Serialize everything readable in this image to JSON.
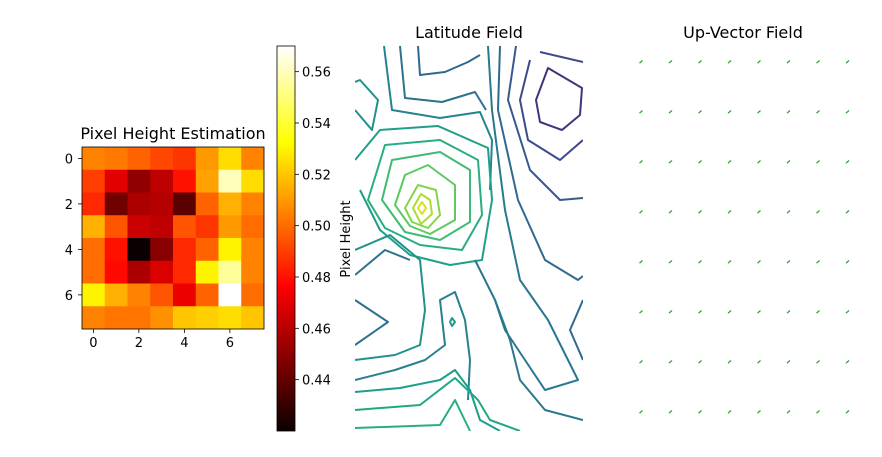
{
  "chart_data": [
    {
      "type": "heatmap",
      "title": "Pixel Height Estimation",
      "xlabel": "",
      "ylabel": "",
      "colormap": "hot",
      "xticks": [
        0,
        2,
        4,
        6
      ],
      "yticks": [
        0,
        2,
        4,
        6
      ],
      "values": [
        [
          0.505,
          0.503,
          0.498,
          0.492,
          0.488,
          0.51,
          0.525,
          0.505
        ],
        [
          0.49,
          0.47,
          0.452,
          0.462,
          0.48,
          0.512,
          0.56,
          0.525
        ],
        [
          0.485,
          0.445,
          0.458,
          0.46,
          0.44,
          0.498,
          0.515,
          0.505
        ],
        [
          0.515,
          0.495,
          0.465,
          0.462,
          0.495,
          0.488,
          0.51,
          0.5
        ],
        [
          0.5,
          0.48,
          0.42,
          0.45,
          0.485,
          0.498,
          0.53,
          0.505
        ],
        [
          0.5,
          0.478,
          0.458,
          0.468,
          0.485,
          0.53,
          0.555,
          0.505
        ],
        [
          0.53,
          0.515,
          0.505,
          0.495,
          0.472,
          0.498,
          0.57,
          0.5
        ],
        [
          0.505,
          0.502,
          0.502,
          0.508,
          0.52,
          0.522,
          0.525,
          0.52
        ]
      ]
    },
    {
      "type": "colorbar",
      "label": "Pixel Height",
      "range": [
        0.42,
        0.57
      ],
      "ticks": [
        "0.44",
        "0.46",
        "0.48",
        "0.50",
        "0.52",
        "0.54",
        "0.56"
      ]
    },
    {
      "type": "contour",
      "title": "Latitude Field",
      "xlabel": "",
      "ylabel": "",
      "levels": 10,
      "colormap": "viridis"
    },
    {
      "type": "quiver",
      "title": "Up-Vector Field",
      "xlabel": "",
      "ylabel": "",
      "grid": [
        8,
        8
      ],
      "color": "#2ca02c"
    }
  ]
}
